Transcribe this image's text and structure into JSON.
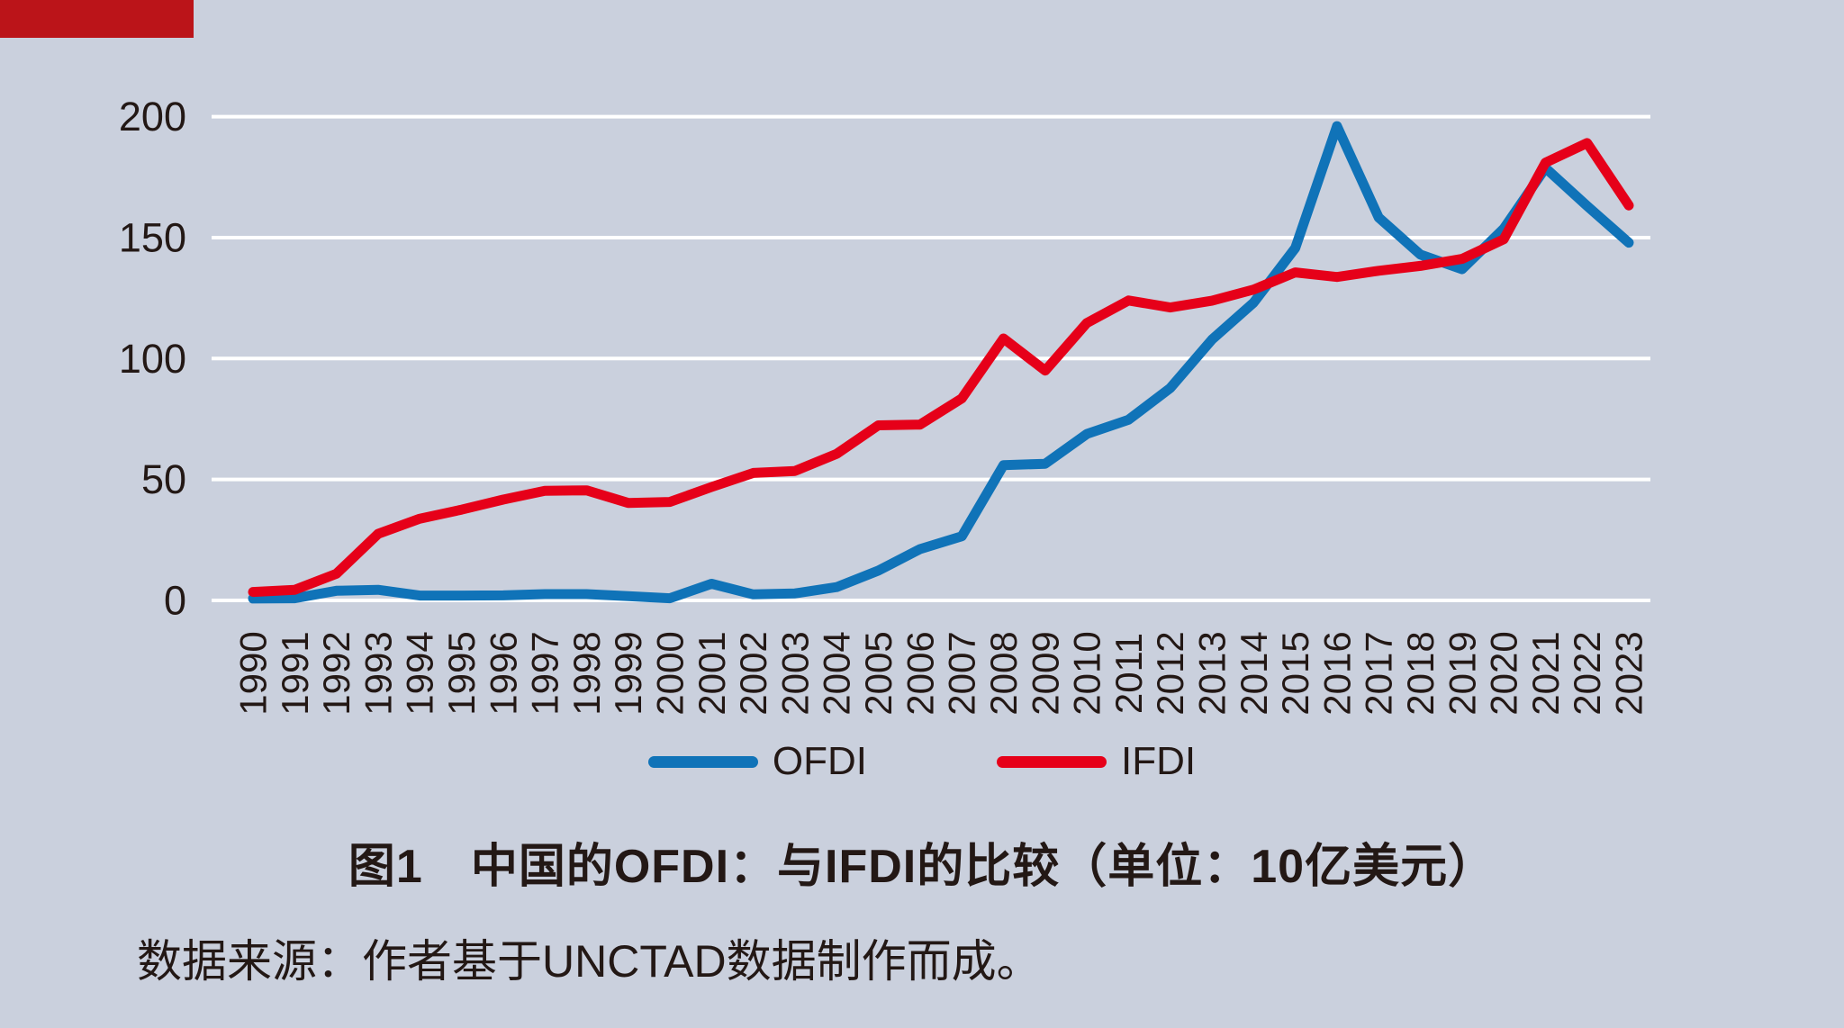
{
  "page": {
    "background_color": "#cad0dd",
    "banner_color": "#bb1419",
    "text_color": "#231815"
  },
  "title": "图1　中国的OFDI：与IFDI的比较（单位：10亿美元）",
  "source_note": "数据来源：作者基于UNCTAD数据制作而成。",
  "legend": {
    "items": [
      {
        "label": "OFDI",
        "color": "#1073b8"
      },
      {
        "label": "IFDI",
        "color": "#e60019"
      }
    ]
  },
  "chart_data": {
    "type": "line",
    "title": "图1　中国的OFDI：与IFDI的比较（单位：10亿美元）",
    "unit": "10亿美元",
    "xlabel": "",
    "ylabel": "",
    "categories": [
      1990,
      1991,
      1992,
      1993,
      1994,
      1995,
      1996,
      1997,
      1998,
      1999,
      2000,
      2001,
      2002,
      2003,
      2004,
      2005,
      2006,
      2007,
      2008,
      2009,
      2010,
      2011,
      2012,
      2013,
      2014,
      2015,
      2016,
      2017,
      2018,
      2019,
      2020,
      2021,
      2022,
      2023
    ],
    "series": [
      {
        "name": "OFDI",
        "color": "#1073b8",
        "values": [
          0.8,
          0.9,
          4.0,
          4.4,
          2.0,
          2.0,
          2.1,
          2.6,
          2.6,
          1.8,
          0.9,
          6.9,
          2.5,
          2.9,
          5.5,
          12.3,
          21.2,
          26.5,
          55.9,
          56.5,
          68.8,
          74.7,
          87.8,
          107.8,
          123.1,
          145.7,
          196.1,
          158.3,
          143.0,
          136.9,
          153.7,
          178.8,
          163.1,
          147.9
        ]
      },
      {
        "name": "IFDI",
        "color": "#e60019",
        "values": [
          3.5,
          4.4,
          11.0,
          27.5,
          33.8,
          37.5,
          41.7,
          45.3,
          45.5,
          40.3,
          40.7,
          46.9,
          52.7,
          53.5,
          60.6,
          72.4,
          72.7,
          83.5,
          108.3,
          95.0,
          114.7,
          124.0,
          121.1,
          123.9,
          128.5,
          135.6,
          133.7,
          136.3,
          138.3,
          141.2,
          149.3,
          181.0,
          189.1,
          163.3
        ]
      }
    ],
    "ylim": [
      0,
      200
    ],
    "yticks": [
      0,
      50,
      100,
      150,
      200
    ],
    "grid": "horizontal",
    "gridline_color": "#ffffff",
    "legend_position": "bottom-center"
  }
}
